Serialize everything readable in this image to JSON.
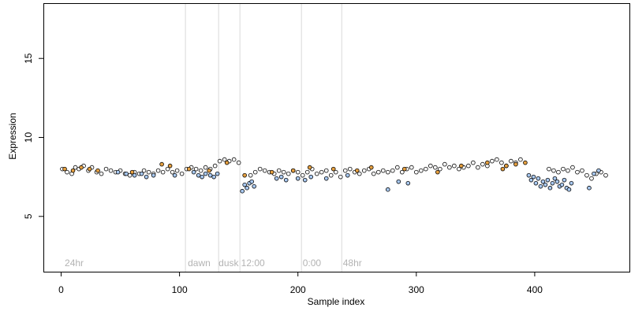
{
  "chart_data": {
    "type": "scatter",
    "title": "",
    "xlabel": "Sample index",
    "ylabel": "Expression",
    "xlim": [
      -15,
      480
    ],
    "ylim": [
      1.5,
      18.5
    ],
    "x_ticks": [
      0,
      100,
      200,
      300,
      400
    ],
    "y_ticks": [
      5,
      10,
      15
    ],
    "grid": false,
    "legend": "none",
    "annotations": [
      {
        "label": "24hr",
        "x": 3
      },
      {
        "label": "dawn",
        "x": 107
      },
      {
        "label": "dusk",
        "x": 133
      },
      {
        "label": "12:00",
        "x": 152
      },
      {
        "label": "0:00",
        "x": 204
      },
      {
        "label": "48hr",
        "x": 238
      }
    ],
    "vertical_lines": [
      105,
      133,
      151,
      203,
      237
    ],
    "point_colors": {
      "dark": "#000000",
      "orange": "#e6a040",
      "blue": "#a8c8f0"
    },
    "series": [
      {
        "color": "dark",
        "x": [
          1,
          5,
          9,
          12,
          15,
          19,
          23,
          26,
          30,
          34,
          38,
          42,
          46,
          50,
          54,
          58,
          62,
          66,
          70,
          74,
          78,
          82,
          86,
          90,
          94,
          98,
          102,
          106,
          110,
          114,
          118,
          122,
          126,
          130,
          134,
          138,
          142,
          146,
          150,
          160,
          164,
          168,
          172,
          176,
          180,
          184,
          188,
          192,
          196,
          200,
          204,
          208,
          212,
          216,
          220,
          224,
          228,
          232,
          236,
          240,
          244,
          248,
          252,
          256,
          260,
          264,
          268,
          272,
          276,
          280,
          284,
          288,
          292,
          296,
          300,
          304,
          308,
          312,
          316,
          320,
          324,
          328,
          332,
          336,
          340,
          344,
          348,
          352,
          356,
          360,
          364,
          368,
          372,
          376,
          380,
          384,
          388,
          412,
          416,
          420,
          424,
          428,
          432,
          436,
          440,
          444,
          448,
          452,
          456,
          460
        ],
        "y": [
          8.0,
          7.8,
          7.7,
          8.1,
          8.0,
          8.2,
          7.9,
          8.1,
          7.8,
          7.7,
          8.0,
          7.9,
          7.8,
          7.9,
          7.7,
          7.6,
          7.8,
          7.7,
          7.9,
          7.8,
          7.7,
          7.9,
          7.8,
          8.0,
          7.8,
          7.9,
          7.7,
          8.0,
          8.1,
          8.0,
          7.9,
          8.1,
          8.0,
          8.2,
          8.5,
          8.6,
          8.5,
          8.6,
          8.4,
          7.6,
          7.8,
          8.0,
          7.9,
          7.8,
          7.7,
          7.9,
          7.8,
          7.7,
          7.9,
          7.8,
          7.6,
          7.8,
          8.0,
          7.7,
          7.8,
          7.9,
          7.6,
          7.8,
          7.5,
          7.9,
          8.0,
          7.8,
          7.7,
          7.9,
          8.0,
          7.7,
          7.8,
          7.9,
          7.8,
          7.9,
          8.1,
          7.8,
          8.0,
          8.1,
          7.8,
          7.9,
          8.0,
          8.2,
          8.1,
          8.0,
          8.3,
          8.1,
          8.2,
          8.0,
          8.1,
          8.2,
          8.4,
          8.1,
          8.3,
          8.2,
          8.5,
          8.6,
          8.4,
          8.2,
          8.5,
          8.4,
          8.6,
          8.0,
          7.9,
          7.8,
          8.0,
          7.9,
          8.1,
          7.8,
          7.9,
          7.6,
          7.4,
          7.7,
          7.8,
          7.6
        ]
      },
      {
        "color": "orange",
        "x": [
          3,
          10,
          17,
          24,
          31,
          60,
          85,
          92,
          108,
          125,
          140,
          155,
          178,
          196,
          210,
          230,
          250,
          262,
          290,
          318,
          338,
          360,
          373,
          376,
          384,
          392
        ],
        "y": [
          8.0,
          7.9,
          8.1,
          8.0,
          7.9,
          7.8,
          8.3,
          8.2,
          8.0,
          7.9,
          8.4,
          7.6,
          7.8,
          7.9,
          8.1,
          8.0,
          7.9,
          8.1,
          8.0,
          7.8,
          8.2,
          8.4,
          8.0,
          8.2,
          8.3,
          8.4
        ]
      },
      {
        "color": "blue",
        "x": [
          48,
          55,
          62,
          68,
          72,
          78,
          96,
          112,
          116,
          119,
          122,
          126,
          129,
          132,
          153,
          155,
          157,
          159,
          161,
          163,
          182,
          186,
          190,
          200,
          206,
          211,
          224,
          242,
          276,
          285,
          293,
          395,
          397,
          399,
          401,
          403,
          405,
          407,
          409,
          411,
          413,
          415,
          417,
          419,
          421,
          423,
          425,
          427,
          429,
          431,
          446,
          450,
          454
        ],
        "y": [
          7.8,
          7.7,
          7.6,
          7.7,
          7.5,
          7.6,
          7.6,
          7.8,
          7.6,
          7.5,
          7.7,
          7.6,
          7.5,
          7.7,
          6.6,
          7.0,
          6.8,
          7.1,
          7.2,
          6.9,
          7.4,
          7.5,
          7.3,
          7.4,
          7.3,
          7.5,
          7.4,
          7.6,
          6.7,
          7.2,
          7.1,
          7.6,
          7.3,
          7.5,
          7.1,
          7.4,
          6.9,
          7.2,
          7.0,
          7.3,
          6.8,
          7.1,
          7.4,
          7.2,
          6.9,
          7.0,
          7.3,
          6.8,
          6.7,
          7.1,
          6.8,
          7.7,
          7.9
        ]
      }
    ]
  }
}
